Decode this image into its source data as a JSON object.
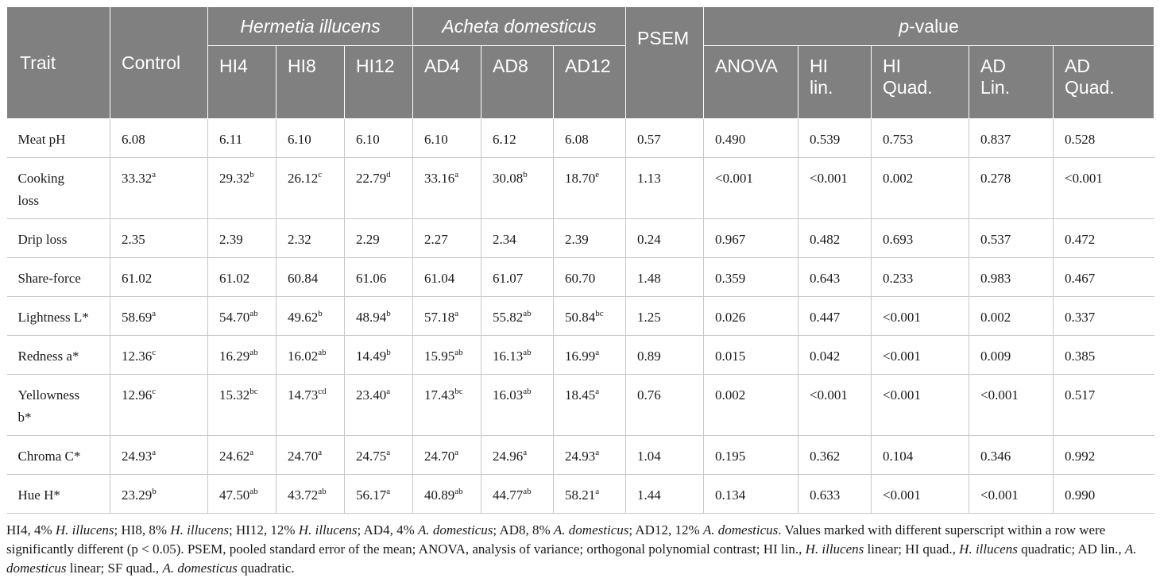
{
  "header": {
    "trait": "Trait",
    "control": "Control",
    "group_hi": "Hermetia illucens",
    "group_ad": "Acheta domesticus",
    "psem": "PSEM",
    "pvalue_italic": "p",
    "pvalue_rest": "-value",
    "hi4": "HI4",
    "hi8": "HI8",
    "hi12": "HI12",
    "ad4": "AD4",
    "ad8": "AD8",
    "ad12": "AD12",
    "anova": "ANOVA",
    "hi_lin_1": "HI",
    "hi_lin_2": "lin.",
    "hi_quad_1": "HI",
    "hi_quad_2": "Quad.",
    "ad_lin_1": "AD",
    "ad_lin_2": "Lin.",
    "ad_quad_1": "AD",
    "ad_quad_2": "Quad."
  },
  "rows": [
    {
      "trait": [
        "Meat pH"
      ],
      "control": [
        "6.08",
        ""
      ],
      "hi4": [
        "6.11",
        ""
      ],
      "hi8": [
        "6.10",
        ""
      ],
      "hi12": [
        "6.10",
        ""
      ],
      "ad4": [
        "6.10",
        ""
      ],
      "ad8": [
        "6.12",
        ""
      ],
      "ad12": [
        "6.08",
        ""
      ],
      "psem": "0.57",
      "anova": "0.490",
      "hi_lin": "0.539",
      "hi_quad": "0.753",
      "ad_lin": "0.837",
      "ad_quad": "0.528"
    },
    {
      "trait": [
        "Cooking",
        "loss"
      ],
      "control": [
        "33.32",
        "a"
      ],
      "hi4": [
        "29.32",
        "b"
      ],
      "hi8": [
        "26.12",
        "c"
      ],
      "hi12": [
        "22.79",
        "d"
      ],
      "ad4": [
        "33.16",
        "a"
      ],
      "ad8": [
        "30.08",
        "b"
      ],
      "ad12": [
        "18.70",
        "e"
      ],
      "psem": "1.13",
      "anova": "<0.001",
      "hi_lin": "<0.001",
      "hi_quad": "0.002",
      "ad_lin": "0.278",
      "ad_quad": "<0.001"
    },
    {
      "trait": [
        "Drip loss"
      ],
      "control": [
        "2.35",
        ""
      ],
      "hi4": [
        "2.39",
        ""
      ],
      "hi8": [
        "2.32",
        ""
      ],
      "hi12": [
        "2.29",
        ""
      ],
      "ad4": [
        "2.27",
        ""
      ],
      "ad8": [
        "2.34",
        ""
      ],
      "ad12": [
        "2.39",
        ""
      ],
      "psem": "0.24",
      "anova": "0.967",
      "hi_lin": "0.482",
      "hi_quad": "0.693",
      "ad_lin": "0.537",
      "ad_quad": "0.472"
    },
    {
      "trait": [
        "Share-force"
      ],
      "control": [
        "61.02",
        ""
      ],
      "hi4": [
        "61.02",
        ""
      ],
      "hi8": [
        "60.84",
        ""
      ],
      "hi12": [
        "61.06",
        ""
      ],
      "ad4": [
        "61.04",
        ""
      ],
      "ad8": [
        "61.07",
        ""
      ],
      "ad12": [
        "60.70",
        ""
      ],
      "psem": "1.48",
      "anova": "0.359",
      "hi_lin": "0.643",
      "hi_quad": "0.233",
      "ad_lin": "0.983",
      "ad_quad": "0.467"
    },
    {
      "trait": [
        "Lightness L*"
      ],
      "control": [
        "58.69",
        "a"
      ],
      "hi4": [
        "54.70",
        "ab"
      ],
      "hi8": [
        "49.62",
        "b"
      ],
      "hi12": [
        "48.94",
        "b"
      ],
      "ad4": [
        "57.18",
        "a"
      ],
      "ad8": [
        "55.82",
        "ab"
      ],
      "ad12": [
        "50.84",
        "bc"
      ],
      "psem": "1.25",
      "anova": "0.026",
      "hi_lin": "0.447",
      "hi_quad": "<0.001",
      "ad_lin": "0.002",
      "ad_quad": "0.337"
    },
    {
      "trait": [
        "Redness a*"
      ],
      "control": [
        "12.36",
        "c"
      ],
      "hi4": [
        "16.29",
        "ab"
      ],
      "hi8": [
        "16.02",
        "ab"
      ],
      "hi12": [
        "14.49",
        "b"
      ],
      "ad4": [
        "15.95",
        "ab"
      ],
      "ad8": [
        "16.13",
        "ab"
      ],
      "ad12": [
        "16.99",
        "a"
      ],
      "psem": "0.89",
      "anova": "0.015",
      "hi_lin": "0.042",
      "hi_quad": "<0.001",
      "ad_lin": "0.009",
      "ad_quad": "0.385"
    },
    {
      "trait": [
        "Yellowness",
        "b*"
      ],
      "control": [
        "12.96",
        "c"
      ],
      "hi4": [
        "15.32",
        "bc"
      ],
      "hi8": [
        "14.73",
        "cd"
      ],
      "hi12": [
        "23.40",
        "a"
      ],
      "ad4": [
        "17.43",
        "bc"
      ],
      "ad8": [
        "16.03",
        "ab"
      ],
      "ad12": [
        "18.45",
        "a"
      ],
      "psem": "0.76",
      "anova": "0.002",
      "hi_lin": "<0.001",
      "hi_quad": "<0.001",
      "ad_lin": "<0.001",
      "ad_quad": "0.517"
    },
    {
      "trait": [
        "Chroma C*"
      ],
      "control": [
        "24.93",
        "a"
      ],
      "hi4": [
        "24.62",
        "a"
      ],
      "hi8": [
        "24.70",
        "a"
      ],
      "hi12": [
        "24.75",
        "a"
      ],
      "ad4": [
        "24.70",
        "a"
      ],
      "ad8": [
        "24.96",
        "a"
      ],
      "ad12": [
        "24.93",
        "a"
      ],
      "psem": "1.04",
      "anova": "0.195",
      "hi_lin": "0.362",
      "hi_quad": "0.104",
      "ad_lin": "0.346",
      "ad_quad": "0.992"
    },
    {
      "trait": [
        "Hue H*"
      ],
      "control": [
        "23.29",
        "b"
      ],
      "hi4": [
        "47.50",
        "ab"
      ],
      "hi8": [
        "43.72",
        "ab"
      ],
      "hi12": [
        "56.17",
        "a"
      ],
      "ad4": [
        "40.89",
        "ab"
      ],
      "ad8": [
        "44.77",
        "ab"
      ],
      "ad12": [
        "58.21",
        "a"
      ],
      "psem": "1.44",
      "anova": "0.134",
      "hi_lin": "0.633",
      "hi_quad": "<0.001",
      "ad_lin": "<0.001",
      "ad_quad": "0.990"
    }
  ],
  "note": {
    "s1": "HI4, 4% ",
    "i1": "H. illucens",
    "s2": "; HI8, 8% ",
    "i2": "H. illucens",
    "s3": "; HI12, 12% ",
    "i3": "H. illucens",
    "s4": "; AD4, 4% ",
    "i4": "A. domesticus",
    "s5": "; AD8, 8% ",
    "i5": "A. domesticus",
    "s6": "; AD12, 12% ",
    "i6": "A. domesticus",
    "s7": ". Values marked with different superscript within a row were significantly different (p < 0.05). PSEM, pooled standard error of the mean; ANOVA, analysis of variance; orthogonal polynomial contrast; HI lin., ",
    "i7": "H. illucens",
    "s8": " linear; HI quad., ",
    "i8": "H. illucens",
    "s9": " quadratic; AD lin., ",
    "i9": "A. domesticus",
    "s10": " linear; SF quad., ",
    "i10": "A. domesticus",
    "s11": " quadratic."
  }
}
